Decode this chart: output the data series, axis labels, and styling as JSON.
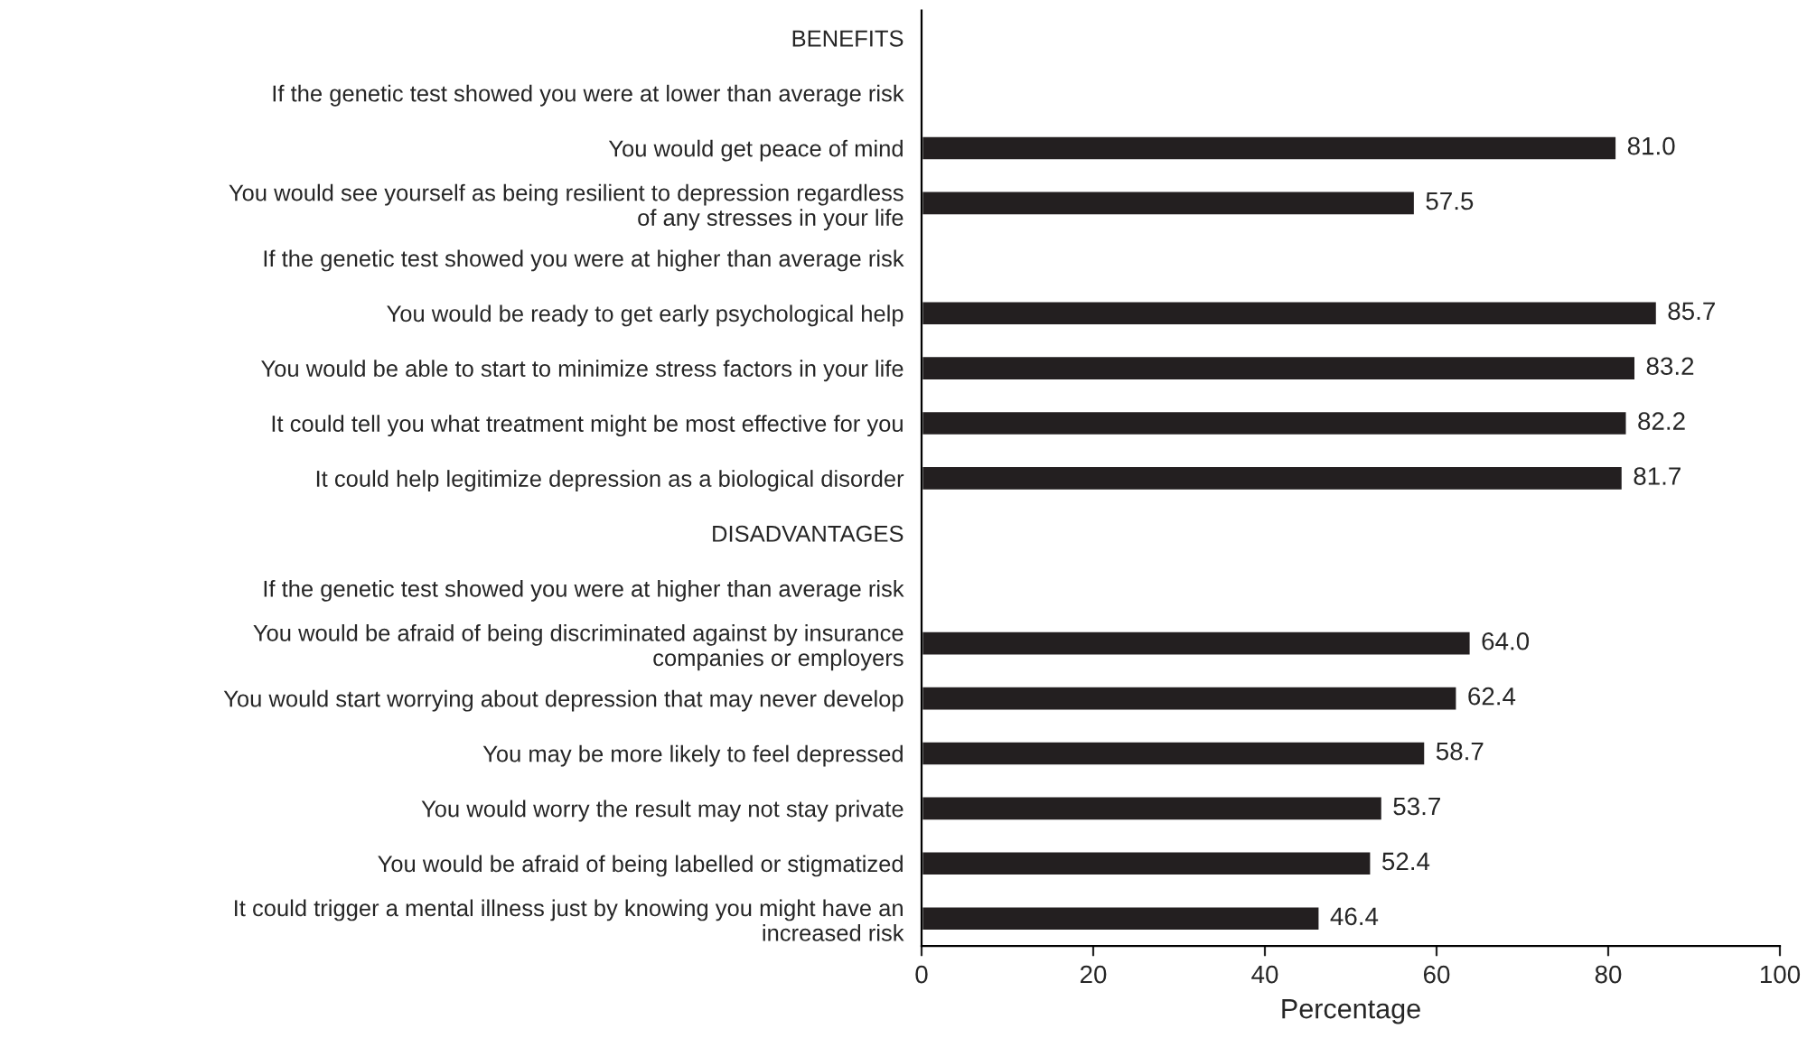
{
  "chart_data": {
    "type": "bar",
    "orientation": "horizontal",
    "xlabel": "Percentage",
    "categories": [
      "BENEFITS",
      "If the genetic test showed you were at lower than average risk",
      "You would get peace of mind",
      "You would see yourself as being resilient to depression regardless\nof any stresses in your life",
      "If the genetic test showed you were at higher than average risk",
      "You would be ready to get early psychological help",
      "You would be able to start to minimize stress factors in your life",
      "It could tell you what treatment might be most effective for you",
      "It could help legitimize depression as a biological disorder",
      "DISADVANTAGES",
      "If the genetic test showed you were at higher than average risk",
      "You would be afraid of being discriminated against by insurance\ncompanies or employers",
      "You would start worrying about depression that may never develop",
      "You may be more likely to feel depressed",
      "You would worry the result may not stay private",
      "You would be afraid of being labelled or stigmatized",
      "It could trigger a mental illness just by knowing you might have an\nincreased risk"
    ],
    "values": [
      null,
      null,
      81.0,
      57.5,
      null,
      85.7,
      83.2,
      82.2,
      81.7,
      null,
      null,
      64.0,
      62.4,
      58.7,
      53.7,
      52.4,
      46.4
    ],
    "value_labels": [
      null,
      null,
      "81.0",
      "57.5",
      null,
      "85.7",
      "83.2",
      "82.2",
      "81.7",
      null,
      null,
      "64.0",
      "62.4",
      "58.7",
      "53.7",
      "52.4",
      "46.4"
    ],
    "color": "#231f20",
    "xlim": [
      0,
      100
    ],
    "xticks": [
      0,
      20,
      40,
      60,
      80,
      100
    ],
    "grid": false,
    "legend": false
  }
}
